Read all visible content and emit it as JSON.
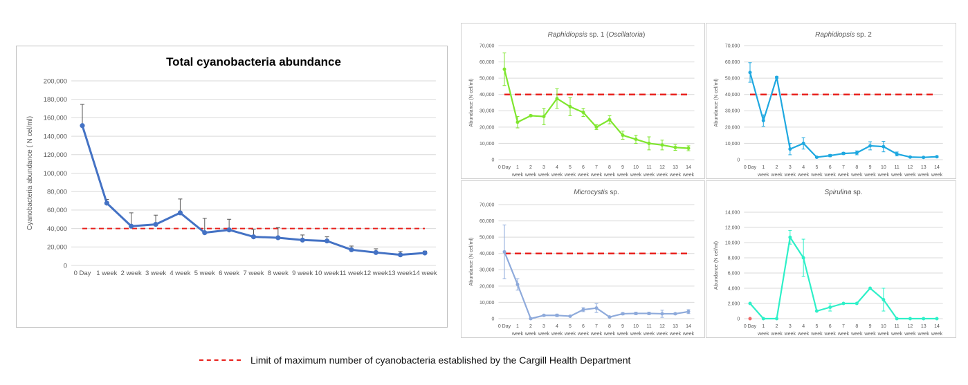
{
  "chart_data": [
    {
      "id": "total",
      "type": "line",
      "title": "Total cyanobacteria abundance",
      "title_style": "bold",
      "xlabel": "",
      "ylabel": "Cyanobacteria abundance ( N cel/ml)",
      "categories": [
        "0 Day",
        "1 week",
        "2 week",
        "3 week",
        "4 week",
        "5 week",
        "6 week",
        "7 week",
        "8 week",
        "9 week",
        "10 week",
        "11 week",
        "12 week",
        "13 week",
        "14 week"
      ],
      "ylim": [
        0,
        200000
      ],
      "yticks": [
        0,
        20000,
        40000,
        60000,
        80000,
        100000,
        120000,
        140000,
        160000,
        180000,
        200000
      ],
      "ytick_labels": [
        "0",
        "20,000",
        "40,000",
        "60,000",
        "80,000",
        "100,000",
        "120,000",
        "140,000",
        "160,000",
        "180,000",
        "200,000"
      ],
      "grid": true,
      "series": [
        {
          "name": "Total cyanobacteria",
          "color": "#4472c4",
          "values": [
            151500,
            67500,
            42500,
            44500,
            57000,
            35500,
            38500,
            31000,
            30000,
            27500,
            26500,
            17000,
            14000,
            11500,
            13500
          ],
          "error_upper": [
            23000,
            4000,
            14500,
            10000,
            15000,
            15500,
            11500,
            8000,
            11000,
            5500,
            4500,
            4000,
            4000,
            3500,
            2000
          ]
        }
      ],
      "threshold": {
        "value": 40000,
        "color": "#e8201c",
        "style": "dashed"
      }
    },
    {
      "id": "raph1",
      "type": "line",
      "title": "Raphidiopsis  sp. 1 (Oscillatoria)",
      "title_parts": [
        {
          "text": "Raphidiopsis",
          "italic": true
        },
        {
          "text": "  sp. 1 (",
          "italic": false
        },
        {
          "text": "Oscillatoria",
          "italic": true
        },
        {
          "text": ")",
          "italic": false
        }
      ],
      "ylabel": "Abundance (N cel/ml)",
      "categories": [
        "0 Day",
        "1 week",
        "2 week",
        "3 week",
        "4 week",
        "5 week",
        "6 week",
        "7 week",
        "8 week",
        "9 week",
        "10 week",
        "11 week",
        "12 week",
        "13 week",
        "14 week"
      ],
      "tick_top": [
        "0 Day",
        "1",
        "2",
        "3",
        "4",
        "5",
        "6",
        "7",
        "8",
        "9",
        "10",
        "11",
        "12",
        "13",
        "14"
      ],
      "tick_bottom": [
        "",
        "week",
        "week",
        "week",
        "week",
        "week",
        "week",
        "week",
        "week",
        "week",
        "week",
        "week",
        "week",
        "week",
        "week"
      ],
      "ylim": [
        0,
        70000
      ],
      "ytick_labels": [
        "0",
        "10,000",
        "20,000",
        "30,000",
        "40,000",
        "50,000",
        "60,000",
        "70,000"
      ],
      "grid": true,
      "series": [
        {
          "name": "Raphidiopsis sp. 1",
          "color": "#7fe62e",
          "values": [
            55500,
            23000,
            27000,
            26500,
            37500,
            32500,
            29000,
            20000,
            24500,
            15000,
            12500,
            10000,
            9000,
            7500,
            7000
          ],
          "error": [
            10000,
            3500,
            500,
            5000,
            6000,
            5500,
            2500,
            1500,
            2500,
            2500,
            2500,
            4000,
            3000,
            1800,
            1500
          ]
        }
      ],
      "threshold": {
        "value": 40000,
        "color": "#e8201c",
        "style": "dashed"
      }
    },
    {
      "id": "raph2",
      "type": "line",
      "title": "Raphidiopsis sp. 2",
      "title_parts": [
        {
          "text": "Raphidiopsis",
          "italic": true
        },
        {
          "text": " sp. 2",
          "italic": false
        }
      ],
      "ylabel": "Abundance (N cel/ml)",
      "categories": [
        "0 Day",
        "1 week",
        "2 week",
        "3 week",
        "4 week",
        "5 week",
        "6 week",
        "7 week",
        "8 week",
        "9 week",
        "10 week",
        "11 week",
        "12 week",
        "13 week",
        "14 week"
      ],
      "tick_top": [
        "0 Day",
        "1",
        "2",
        "3",
        "4",
        "5",
        "6",
        "7",
        "8",
        "9",
        "10",
        "11",
        "12",
        "13",
        "14"
      ],
      "tick_bottom": [
        "",
        "week",
        "week",
        "week",
        "week",
        "week",
        "week",
        "week",
        "week",
        "week",
        "week",
        "week",
        "week",
        "week",
        "week"
      ],
      "ylim": [
        0,
        70000
      ],
      "ytick_labels": [
        "0",
        "10,000",
        "20,000",
        "30,000",
        "40,000",
        "50,000",
        "60,000",
        "70,000"
      ],
      "grid": true,
      "series": [
        {
          "name": "Raphidiopsis sp. 2",
          "color": "#1fa8e0",
          "values": [
            53500,
            24000,
            50500,
            6500,
            10000,
            1500,
            2500,
            3800,
            4200,
            8500,
            8000,
            3500,
            1600,
            1400,
            1800
          ],
          "error": [
            6000,
            3500,
            500,
            3500,
            3500,
            400,
            700,
            700,
            1200,
            2500,
            3200,
            1200,
            400,
            300,
            400
          ]
        }
      ],
      "threshold": {
        "value": 40000,
        "color": "#e8201c",
        "style": "dashed"
      }
    },
    {
      "id": "micro",
      "type": "line",
      "title": "Microcystis sp.",
      "title_parts": [
        {
          "text": "Microcystis",
          "italic": true
        },
        {
          "text": " sp.",
          "italic": false
        }
      ],
      "ylabel": "Abundance (N cel/ml)",
      "categories": [
        "0 Day",
        "1 week",
        "2 week",
        "3 week",
        "4 week",
        "5 week",
        "6 week",
        "7 week",
        "8 week",
        "9 week",
        "10 week",
        "11 week",
        "12 week",
        "13 week",
        "14 week"
      ],
      "tick_top": [
        "0 Day",
        "1",
        "2",
        "3",
        "4",
        "5",
        "6",
        "7",
        "8",
        "9",
        "10",
        "11",
        "12",
        "13",
        "14"
      ],
      "tick_bottom": [
        "",
        "week",
        "week",
        "week",
        "week",
        "week",
        "week",
        "week",
        "week",
        "week",
        "week",
        "week",
        "week",
        "week",
        "week"
      ],
      "ylim": [
        0,
        70000
      ],
      "ytick_labels": [
        "0",
        "10,000",
        "20,000",
        "30,000",
        "40,000",
        "50,000",
        "60,000",
        "70,000"
      ],
      "grid": true,
      "series": [
        {
          "name": "Microcystis sp.",
          "color": "#8eaadb",
          "values": [
            41000,
            21000,
            0,
            2000,
            2000,
            1500,
            5500,
            6500,
            1000,
            3000,
            3200,
            3200,
            3000,
            3000,
            4300
          ],
          "error": [
            16500,
            3500,
            300,
            500,
            800,
            400,
            1200,
            2700,
            300,
            700,
            800,
            800,
            2200,
            500,
            1200
          ]
        }
      ],
      "threshold": {
        "value": 40000,
        "color": "#e8201c",
        "style": "dashed"
      }
    },
    {
      "id": "spir",
      "type": "line",
      "title": "Spirulina sp.",
      "title_parts": [
        {
          "text": "Spirulina",
          "italic": true
        },
        {
          "text": " sp.",
          "italic": false
        }
      ],
      "ylabel": "Abundance (N cel/ml)",
      "categories": [
        "0 Day",
        "1 week",
        "2 week",
        "3 week",
        "4 week",
        "5 week",
        "6 week",
        "7 week",
        "8 week",
        "9 week",
        "10 week",
        "11 week",
        "12 week",
        "13 week",
        "14 week"
      ],
      "tick_top": [
        "0 Day",
        "1",
        "2",
        "3",
        "4",
        "5",
        "6",
        "7",
        "8",
        "9",
        "10",
        "11",
        "12",
        "13",
        "14"
      ],
      "tick_bottom": [
        "",
        "week",
        "week",
        "week",
        "week",
        "week",
        "week",
        "week",
        "week",
        "week",
        "week",
        "week",
        "week",
        "week",
        "week"
      ],
      "ylim": [
        0,
        14000
      ],
      "ytick_labels": [
        "0",
        "2,000",
        "4,000",
        "6,000",
        "8,000",
        "10,000",
        "12,000",
        "14,000"
      ],
      "grid": true,
      "series": [
        {
          "name": "Spirulina sp.",
          "color": "#2ef0c8",
          "values": [
            2000,
            0,
            0,
            10700,
            8000,
            1000,
            1500,
            2000,
            2000,
            4000,
            2500,
            0,
            0,
            0,
            0
          ],
          "error": [
            0,
            0,
            0,
            900,
            2450,
            0,
            500,
            0,
            0,
            0,
            1500,
            0,
            0,
            0,
            0
          ]
        }
      ],
      "marker_extra": {
        "category": "0 Day",
        "value": 0,
        "color": "#f06a6a"
      },
      "threshold": null
    }
  ],
  "legend": {
    "label": "Limit of maximum number of cyanobacteria established by the Cargill Health Department",
    "color": "#e8201c",
    "style": "dashed"
  }
}
